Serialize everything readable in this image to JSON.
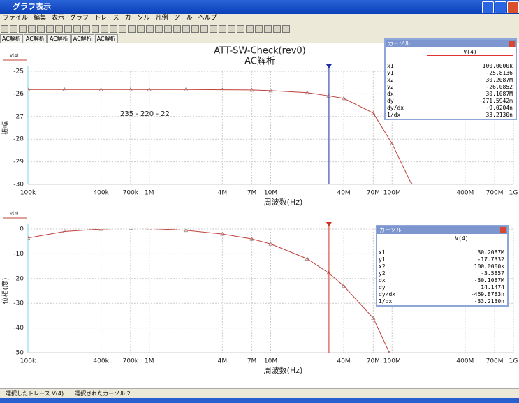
{
  "window": {
    "title": "グラフ表示"
  },
  "menu": [
    "ファイル",
    "編集",
    "表示",
    "グラフ",
    "トレース",
    "カーソル",
    "凡例",
    "ツール",
    "ヘルプ"
  ],
  "tabs": [
    "AC解析",
    "AC解析",
    "AC解析",
    "AC解析",
    "AC解析"
  ],
  "chart_data": [
    {
      "type": "line",
      "title": "ATT-SW-Check(rev0)",
      "subtitle": "AC解析",
      "annotation": "235 - 220 - 22",
      "y_label": "振幅",
      "x_label": "周波数(Hz)",
      "xscale": "log",
      "grid": true,
      "xlim": [
        100000,
        1000000000
      ],
      "ylim": [
        -30,
        -25
      ],
      "xticks": [
        {
          "value": 100000,
          "label": "100k"
        },
        {
          "value": 400000,
          "label": "400k"
        },
        {
          "value": 700000,
          "label": "700k"
        },
        {
          "value": 1000000,
          "label": "1M"
        },
        {
          "value": 4000000,
          "label": "4M"
        },
        {
          "value": 7000000,
          "label": "7M"
        },
        {
          "value": 10000000,
          "label": "10M"
        },
        {
          "value": 40000000,
          "label": "40M"
        },
        {
          "value": 70000000,
          "label": "70M"
        },
        {
          "value": 100000000,
          "label": "100M"
        },
        {
          "value": 400000000,
          "label": "400M"
        },
        {
          "value": 700000000,
          "label": "700M"
        },
        {
          "value": 1000000000,
          "label": "1G"
        }
      ],
      "yticks": [
        -25,
        -26,
        -27,
        -28,
        -29,
        -30
      ],
      "x": [
        100000,
        200000,
        400000,
        700000,
        1000000,
        2000000,
        4000000,
        7000000,
        10000000,
        20000000,
        30000000,
        40000000,
        70000000,
        100000000,
        145000000
      ],
      "series": [
        {
          "name": "V(4)",
          "color": "#c0403a",
          "values": [
            -25.81,
            -25.81,
            -25.81,
            -25.81,
            -25.81,
            -25.81,
            -25.82,
            -25.83,
            -25.86,
            -25.95,
            -26.09,
            -26.2,
            -26.85,
            -28.2,
            -30
          ]
        }
      ],
      "cursor": {
        "x": 30208700,
        "color": "#1c2ca8"
      }
    },
    {
      "type": "line",
      "y_label": "位相(度)",
      "x_label": "周波数(Hz)",
      "xscale": "log",
      "grid": true,
      "xlim": [
        100000,
        1000000000
      ],
      "ylim": [
        -50,
        0
      ],
      "xticks": [
        {
          "value": 100000,
          "label": "100k"
        },
        {
          "value": 400000,
          "label": "400k"
        },
        {
          "value": 700000,
          "label": "700k"
        },
        {
          "value": 1000000,
          "label": "1M"
        },
        {
          "value": 4000000,
          "label": "4M"
        },
        {
          "value": 7000000,
          "label": "7M"
        },
        {
          "value": 10000000,
          "label": "10M"
        },
        {
          "value": 40000000,
          "label": "40M"
        },
        {
          "value": 70000000,
          "label": "70M"
        },
        {
          "value": 100000000,
          "label": "100M"
        },
        {
          "value": 400000000,
          "label": "400M"
        },
        {
          "value": 700000000,
          "label": "700M"
        },
        {
          "value": 1000000000,
          "label": "1G"
        }
      ],
      "yticks": [
        0,
        -10,
        -20,
        -30,
        -40,
        -50
      ],
      "x": [
        100000,
        200000,
        400000,
        700000,
        1000000,
        2000000,
        4000000,
        7000000,
        10000000,
        20000000,
        30000000,
        40000000,
        70000000,
        95000000
      ],
      "series": [
        {
          "name": "V(4)",
          "color": "#c0403a",
          "values": [
            -3.59,
            -1,
            0,
            0.3,
            0.2,
            -0.5,
            -2,
            -4,
            -6,
            -12,
            -17.73,
            -23,
            -36,
            -50
          ]
        }
      ],
      "cursor": {
        "x": 30208700,
        "color": "#d03028"
      }
    }
  ],
  "cursor_panels": [
    {
      "title": "カーソル",
      "trace": "V(4)",
      "rows": [
        [
          "x1",
          "100.0000k"
        ],
        [
          "y1",
          "-25.8136"
        ],
        [
          "x2",
          "30.2087M"
        ],
        [
          "y2",
          "-26.0852"
        ],
        [
          "dx",
          "30.1087M"
        ],
        [
          "dy",
          "-271.5942m"
        ],
        [
          "dy/dx",
          "-9.0204n"
        ],
        [
          "1/dx",
          "33.2130n"
        ]
      ]
    },
    {
      "title": "カーソル",
      "trace": "V(4)",
      "rows": [
        [
          "x1",
          "30.2087M"
        ],
        [
          "y1",
          "-17.7332"
        ],
        [
          "x2",
          "100.0000k"
        ],
        [
          "y2",
          "-3.5857"
        ],
        [
          "dx",
          "-30.1087M"
        ],
        [
          "dy",
          "14.1474"
        ],
        [
          "dy/dx",
          "-469.8783n"
        ],
        [
          "1/dx",
          "-33.2130n"
        ]
      ]
    }
  ],
  "status": [
    "選択したトレース:V(4)",
    "選択されたカーソル:2"
  ]
}
